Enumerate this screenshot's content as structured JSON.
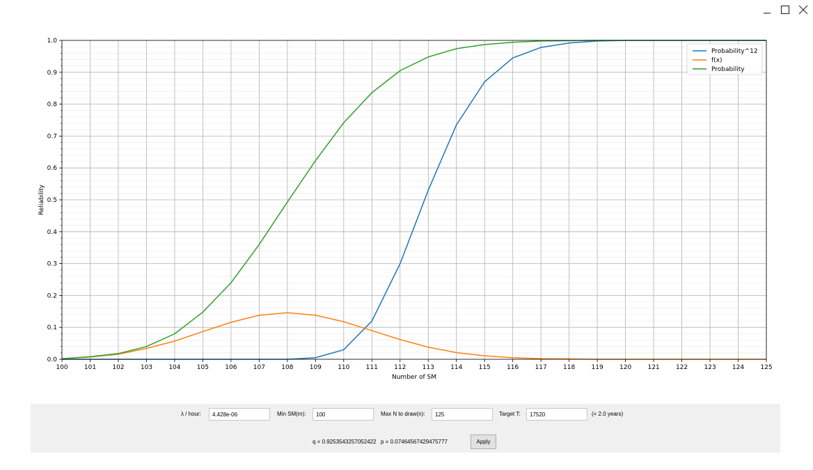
{
  "window": {
    "controls": {
      "minimize": "_",
      "maximize": "□",
      "close": "×"
    }
  },
  "chart_data": {
    "type": "line",
    "xlabel": "Number of SM",
    "ylabel": "Reliability",
    "xlim": [
      100,
      125
    ],
    "ylim": [
      0,
      1.0
    ],
    "grid": true,
    "legend_position": "top-right",
    "x": [
      100,
      101,
      102,
      103,
      104,
      105,
      106,
      107,
      108,
      109,
      110,
      111,
      112,
      113,
      114,
      115,
      116,
      117,
      118,
      119,
      120,
      121,
      122,
      123,
      124,
      125
    ],
    "x_ticks": [
      "100",
      "101",
      "102",
      "103",
      "104",
      "105",
      "106",
      "107",
      "108",
      "109",
      "110",
      "111",
      "112",
      "113",
      "114",
      "115",
      "116",
      "117",
      "118",
      "119",
      "120",
      "121",
      "122",
      "123",
      "124",
      "125"
    ],
    "y_ticks": [
      "0.0",
      "0.1",
      "0.2",
      "0.3",
      "0.4",
      "0.5",
      "0.6",
      "0.7",
      "0.8",
      "0.9",
      "1.0"
    ],
    "series": [
      {
        "name": "Probability^12",
        "color": "#1f77b4",
        "values": [
          0,
          0,
          0,
          0,
          0,
          0,
          0,
          0,
          0,
          0.005,
          0.03,
          0.12,
          0.3,
          0.53,
          0.735,
          0.87,
          0.945,
          0.978,
          0.992,
          0.998,
          1.0,
          1.0,
          1.0,
          1.0,
          1.0,
          1.0
        ]
      },
      {
        "name": "f(x)",
        "color": "#ff7f0e",
        "values": [
          0.002,
          0.007,
          0.016,
          0.034,
          0.057,
          0.087,
          0.116,
          0.138,
          0.146,
          0.138,
          0.118,
          0.09,
          0.062,
          0.038,
          0.021,
          0.011,
          0.005,
          0.002,
          0.001,
          0.0,
          0.0,
          0.0,
          0.0,
          0.0,
          0.0,
          0.0
        ]
      },
      {
        "name": "Probability",
        "color": "#2ca02c",
        "values": [
          0.002,
          0.008,
          0.018,
          0.04,
          0.08,
          0.148,
          0.24,
          0.36,
          0.493,
          0.623,
          0.742,
          0.836,
          0.905,
          0.948,
          0.974,
          0.987,
          0.994,
          0.998,
          0.999,
          1.0,
          1.0,
          1.0,
          1.0,
          1.0,
          1.0,
          1.0
        ]
      }
    ]
  },
  "controls": {
    "lambda_label": "λ / hour:",
    "lambda_value": "4.428e-06",
    "min_sm_label": "Min SM(m):",
    "min_sm_value": "100",
    "max_n_label": "Max N to draw(n):",
    "max_n_value": "125",
    "target_label": "Target T:",
    "target_value": "17520",
    "years_note": "(= 2.0 years)",
    "q_text": "q = 0.9253543257052422",
    "p_text": "p = 0.07464567429475777",
    "apply_label": "Apply"
  }
}
